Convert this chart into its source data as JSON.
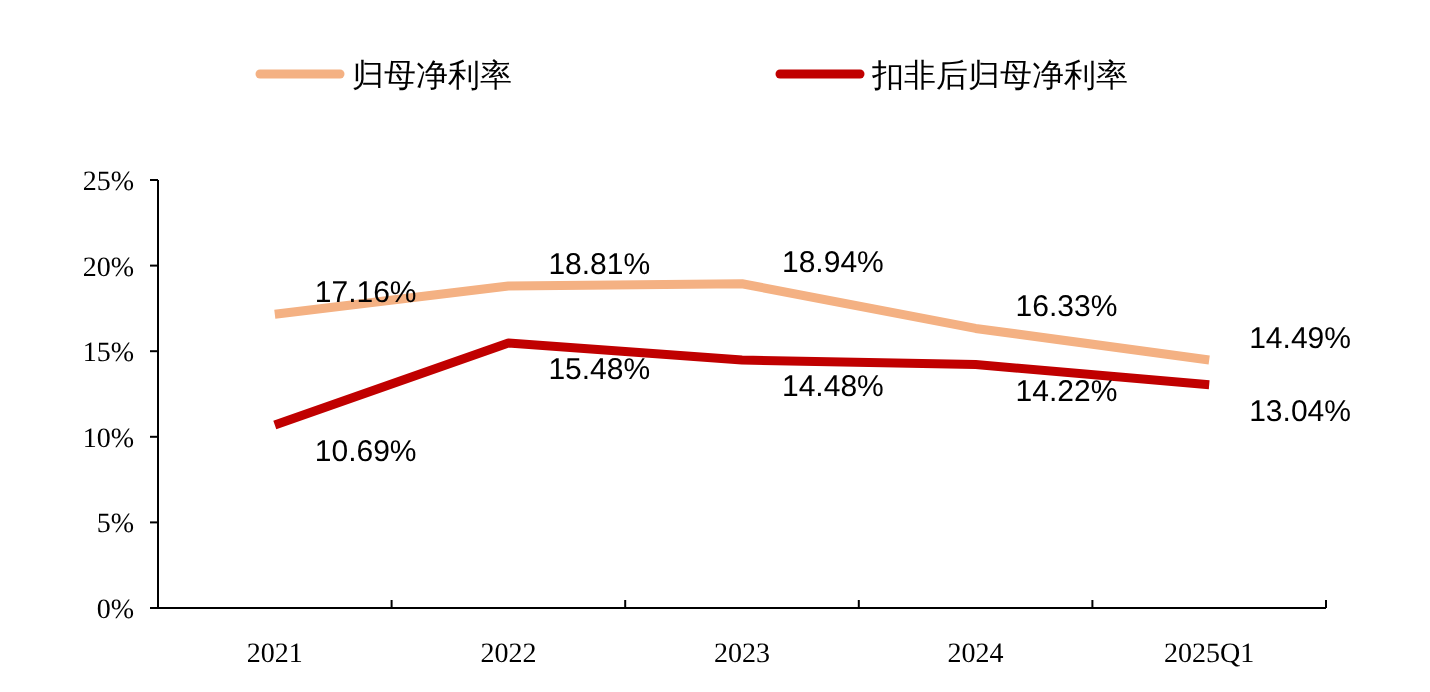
{
  "chart_data": {
    "type": "line",
    "categories": [
      "2021",
      "2022",
      "2023",
      "2024",
      "2025Q1"
    ],
    "series": [
      {
        "name": "归母净利率",
        "color": "#f4b183",
        "values": [
          17.16,
          18.81,
          18.94,
          16.33,
          14.49
        ],
        "value_labels": [
          "17.16%",
          "18.81%",
          "18.94%",
          "16.33%",
          "14.49%"
        ]
      },
      {
        "name": "扣非后归母净利率",
        "color": "#c00000",
        "values": [
          10.69,
          15.48,
          14.48,
          14.22,
          13.04
        ],
        "value_labels": [
          "10.69%",
          "15.48%",
          "14.48%",
          "14.22%",
          "13.04%"
        ]
      }
    ],
    "ylim": [
      0,
      25
    ],
    "yticks": [
      {
        "value": 0,
        "label": "0%"
      },
      {
        "value": 5,
        "label": "5%"
      },
      {
        "value": 10,
        "label": "10%"
      },
      {
        "value": 15,
        "label": "15%"
      },
      {
        "value": 20,
        "label": "20%"
      },
      {
        "value": 25,
        "label": "25%"
      }
    ],
    "legend": "top",
    "grid": false,
    "marker": "none",
    "line_style": "solid"
  }
}
